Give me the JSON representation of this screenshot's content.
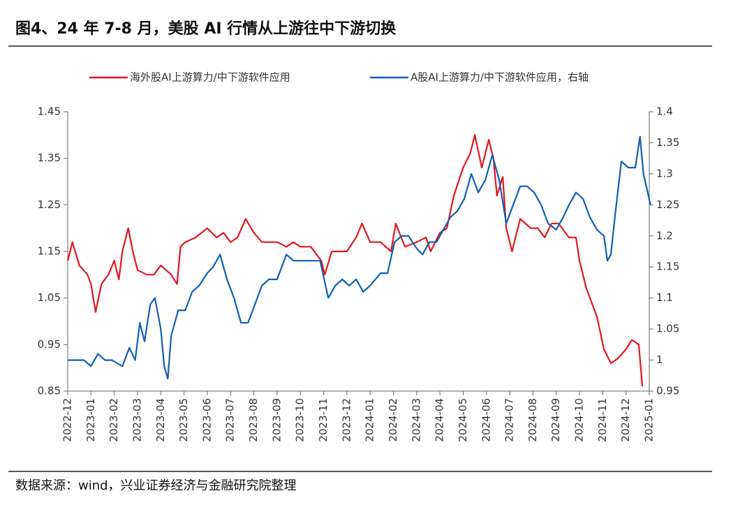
{
  "chart_data": {
    "type": "line",
    "title": "图4、24 年 7-8 月，美股 AI 行情从上游往中下游切换",
    "source": "数据来源：wind，兴业证券经济与金融研究院整理",
    "xlim": [
      0,
      25
    ],
    "xticks": [
      {
        "value": 0,
        "label": "2022-12"
      },
      {
        "value": 1,
        "label": "2023-01"
      },
      {
        "value": 2,
        "label": "2023-02"
      },
      {
        "value": 3,
        "label": "2023-03"
      },
      {
        "value": 4,
        "label": "2023-04"
      },
      {
        "value": 5,
        "label": "2023-05"
      },
      {
        "value": 6,
        "label": "2023-06"
      },
      {
        "value": 7,
        "label": "2023-07"
      },
      {
        "value": 8,
        "label": "2023-08"
      },
      {
        "value": 9,
        "label": "2023-09"
      },
      {
        "value": 10,
        "label": "2023-10"
      },
      {
        "value": 11,
        "label": "2023-11"
      },
      {
        "value": 12,
        "label": "2023-12"
      },
      {
        "value": 13,
        "label": "2024-01"
      },
      {
        "value": 14,
        "label": "2024-02"
      },
      {
        "value": 15,
        "label": "2024-03"
      },
      {
        "value": 16,
        "label": "2024-04"
      },
      {
        "value": 17,
        "label": "2024-05"
      },
      {
        "value": 18,
        "label": "2024-06"
      },
      {
        "value": 19,
        "label": "2024-07"
      },
      {
        "value": 20,
        "label": "2024-08"
      },
      {
        "value": 21,
        "label": "2024-09"
      },
      {
        "value": 22,
        "label": "2024-10"
      },
      {
        "value": 23,
        "label": "2024-11"
      },
      {
        "value": 24,
        "label": "2024-12"
      },
      {
        "value": 25,
        "label": "2025-01"
      }
    ],
    "ylim": [
      0.85,
      1.45
    ],
    "yticks": [
      0.85,
      0.95,
      1.05,
      1.15,
      1.25,
      1.35,
      1.45
    ],
    "y2lim": [
      0.95,
      1.4
    ],
    "y2ticks": [
      0.95,
      1,
      1.05,
      1.1,
      1.15,
      1.2,
      1.25,
      1.3,
      1.35,
      1.4
    ],
    "series": [
      {
        "name": "海外股AI上游算力/中下游软件应用",
        "color": "#e3151d",
        "x": [
          0,
          0.2,
          0.5,
          0.85,
          1.0,
          1.2,
          1.45,
          1.75,
          2.0,
          2.2,
          2.35,
          2.6,
          2.8,
          3.0,
          3.4,
          3.7,
          4.0,
          4.45,
          4.7,
          4.85,
          5.05,
          5.5,
          6.0,
          6.4,
          6.7,
          7.0,
          7.3,
          7.65,
          8.0,
          8.35,
          8.8,
          9.0,
          9.4,
          9.7,
          10.0,
          10.45,
          10.9,
          11.05,
          11.35,
          12.0,
          12.4,
          12.65,
          13.0,
          13.45,
          13.9,
          14.1,
          14.5,
          15.0,
          15.4,
          15.6,
          16.0,
          16.3,
          16.6,
          17.0,
          17.3,
          17.5,
          17.8,
          18.1,
          18.3,
          18.45,
          18.7,
          18.85,
          19.1,
          19.45,
          19.9,
          20.2,
          20.5,
          20.8,
          21.1,
          21.55,
          21.85,
          22.0,
          22.3,
          22.75,
          23.05,
          23.35,
          23.65,
          24.0,
          24.25,
          24.55,
          24.7
        ],
        "values": [
          1.13,
          1.17,
          1.12,
          1.1,
          1.08,
          1.02,
          1.08,
          1.1,
          1.13,
          1.09,
          1.15,
          1.2,
          1.15,
          1.11,
          1.1,
          1.1,
          1.12,
          1.1,
          1.08,
          1.16,
          1.17,
          1.18,
          1.2,
          1.18,
          1.19,
          1.17,
          1.18,
          1.22,
          1.19,
          1.17,
          1.17,
          1.17,
          1.16,
          1.17,
          1.16,
          1.16,
          1.13,
          1.1,
          1.15,
          1.15,
          1.18,
          1.21,
          1.17,
          1.17,
          1.15,
          1.21,
          1.16,
          1.17,
          1.18,
          1.15,
          1.19,
          1.2,
          1.27,
          1.33,
          1.36,
          1.4,
          1.33,
          1.39,
          1.35,
          1.27,
          1.31,
          1.2,
          1.15,
          1.22,
          1.2,
          1.2,
          1.18,
          1.21,
          1.21,
          1.18,
          1.18,
          1.13,
          1.07,
          1.01,
          0.94,
          0.91,
          0.92,
          0.94,
          0.96,
          0.95,
          0.86
        ]
      },
      {
        "name": "A股AI上游算力/中下游软件应用，右轴",
        "color": "#0e5fb4",
        "axis": "y2",
        "x": [
          0,
          0.4,
          0.7,
          1.0,
          1.3,
          1.6,
          1.9,
          2.35,
          2.65,
          2.9,
          3.1,
          3.3,
          3.55,
          3.75,
          4.0,
          4.15,
          4.3,
          4.45,
          4.75,
          5.05,
          5.35,
          5.65,
          6.0,
          6.25,
          6.55,
          6.85,
          7.15,
          7.45,
          7.75,
          8.05,
          8.35,
          8.65,
          9.0,
          9.4,
          9.7,
          10.0,
          10.45,
          10.85,
          11.2,
          11.5,
          11.8,
          12.1,
          12.4,
          12.7,
          13.0,
          13.45,
          13.75,
          14.05,
          14.35,
          14.65,
          15.0,
          15.25,
          15.55,
          15.85,
          16.15,
          16.45,
          16.75,
          17.05,
          17.35,
          17.65,
          17.95,
          18.25,
          18.55,
          18.85,
          19.15,
          19.45,
          19.75,
          20.05,
          20.35,
          20.65,
          21.0,
          21.3,
          21.55,
          21.85,
          22.15,
          22.45,
          22.75,
          23.05,
          23.2,
          23.35,
          23.55,
          23.8,
          24.1,
          24.4,
          24.6,
          24.75,
          25.05
        ],
        "values": [
          1.0,
          1.0,
          1.0,
          0.99,
          1.01,
          1.0,
          1.0,
          0.99,
          1.02,
          1.0,
          1.06,
          1.03,
          1.09,
          1.1,
          1.05,
          0.99,
          0.97,
          1.04,
          1.08,
          1.08,
          1.11,
          1.12,
          1.14,
          1.15,
          1.17,
          1.13,
          1.1,
          1.06,
          1.06,
          1.09,
          1.12,
          1.13,
          1.13,
          1.17,
          1.16,
          1.16,
          1.16,
          1.16,
          1.1,
          1.12,
          1.13,
          1.12,
          1.13,
          1.11,
          1.12,
          1.14,
          1.14,
          1.19,
          1.2,
          1.2,
          1.18,
          1.17,
          1.19,
          1.19,
          1.21,
          1.23,
          1.24,
          1.26,
          1.3,
          1.27,
          1.29,
          1.33,
          1.29,
          1.22,
          1.25,
          1.28,
          1.28,
          1.27,
          1.25,
          1.22,
          1.21,
          1.23,
          1.25,
          1.27,
          1.26,
          1.23,
          1.21,
          1.2,
          1.16,
          1.17,
          1.24,
          1.32,
          1.31,
          1.31,
          1.36,
          1.3,
          1.25
        ]
      }
    ]
  }
}
